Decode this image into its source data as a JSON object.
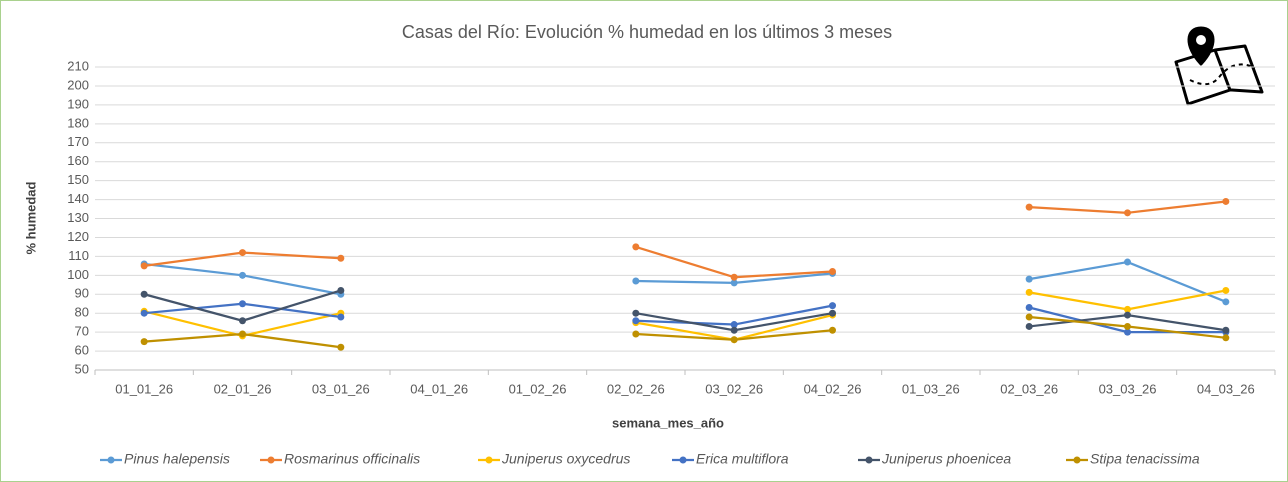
{
  "chart_data": {
    "type": "line",
    "title": "Casas del Río: Evolución % humedad en los últimos 3 meses",
    "x_label": "semana_mes_año",
    "y_label": "% humedad",
    "categories": [
      "01_01_26",
      "02_01_26",
      "03_01_26",
      "04_01_26",
      "01_02_26",
      "02_02_26",
      "03_02_26",
      "04_02_26",
      "01_03_26",
      "02_03_26",
      "03_03_26",
      "04_03_26"
    ],
    "ylim": [
      50,
      210
    ],
    "yticks": [
      50,
      60,
      70,
      80,
      90,
      100,
      110,
      120,
      130,
      140,
      150,
      160,
      170,
      180,
      190,
      200,
      210
    ],
    "grid": true,
    "legend": "bottom",
    "series": [
      {
        "name": "Pinus halepensis",
        "color": "#5b9bd5",
        "values": [
          106,
          100,
          90,
          null,
          null,
          97,
          96,
          101,
          null,
          98,
          107,
          86
        ]
      },
      {
        "name": "Rosmarinus officinalis",
        "color": "#ed7d31",
        "values": [
          105,
          112,
          109,
          null,
          null,
          115,
          99,
          102,
          null,
          136,
          133,
          139
        ]
      },
      {
        "name": "Juniperus oxycedrus",
        "color": "#ffc000",
        "values": [
          81,
          68,
          80,
          null,
          null,
          75,
          66,
          79,
          null,
          91,
          82,
          92
        ]
      },
      {
        "name": "Erica multiflora",
        "color": "#4472c4",
        "values": [
          80,
          85,
          78,
          null,
          null,
          76,
          74,
          84,
          null,
          83,
          70,
          70
        ]
      },
      {
        "name": "Juniperus phoenicea",
        "color": "#44546a",
        "values": [
          90,
          76,
          92,
          null,
          null,
          80,
          71,
          80,
          null,
          73,
          79,
          71
        ]
      },
      {
        "name": "Stipa tenacissima",
        "color": "#bf9000",
        "values": [
          65,
          69,
          62,
          null,
          null,
          69,
          66,
          71,
          null,
          78,
          73,
          67
        ]
      }
    ]
  }
}
